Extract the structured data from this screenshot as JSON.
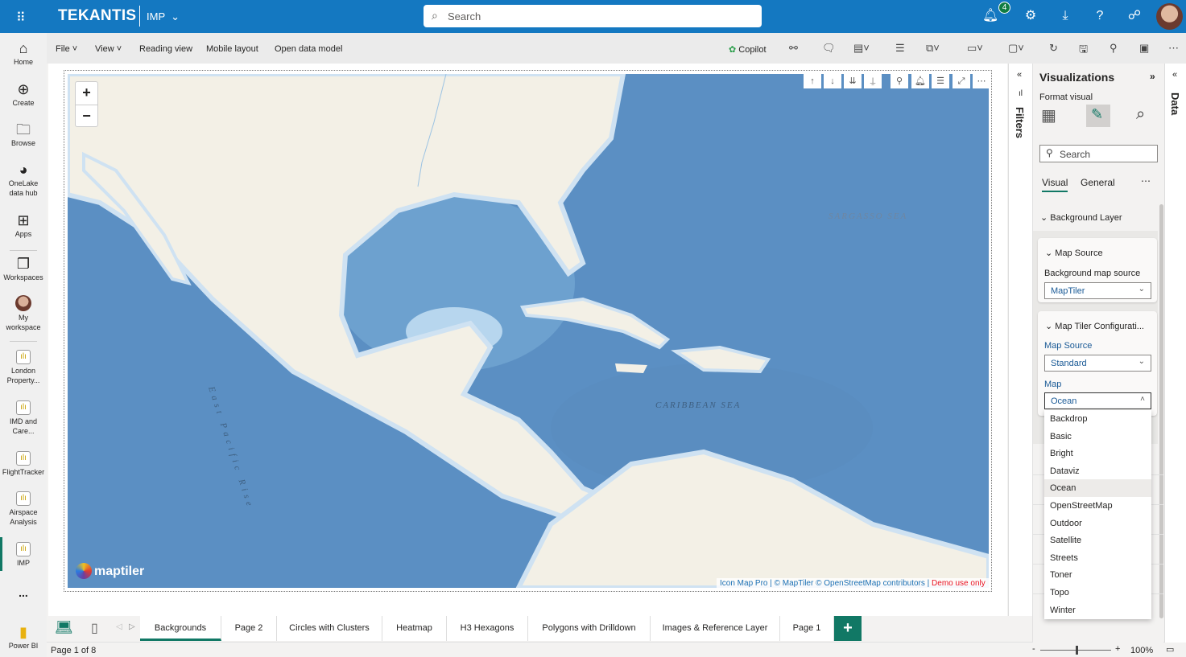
{
  "topbar": {
    "brand": "TEKANTIS",
    "workspace": "IMP",
    "search_placeholder": "Search",
    "notification_count": "4"
  },
  "leftnav": [
    {
      "label": "Home",
      "icon": "home-icon"
    },
    {
      "label": "Create",
      "icon": "plus-circle-icon"
    },
    {
      "label": "Browse",
      "icon": "folder-icon"
    },
    {
      "label": "OneLake data hub",
      "icon": "onelake-icon"
    },
    {
      "label": "Apps",
      "icon": "apps-icon"
    },
    {
      "label": "Workspaces",
      "icon": "workspaces-icon"
    },
    {
      "label": "My workspace",
      "icon": "avatar-icon"
    },
    {
      "label": "London Property...",
      "icon": "report-icon"
    },
    {
      "label": "IMD and Care...",
      "icon": "report-icon"
    },
    {
      "label": "FlightTracker",
      "icon": "report-icon"
    },
    {
      "label": "Airspace Analysis",
      "icon": "report-icon"
    },
    {
      "label": "IMP",
      "icon": "report-icon"
    },
    {
      "label": "...",
      "icon": "more-icon"
    },
    {
      "label": "Power BI",
      "icon": "powerbi-icon"
    }
  ],
  "ribbon": {
    "file": "File",
    "view": "View",
    "reading_view": "Reading view",
    "mobile_layout": "Mobile layout",
    "open_data_model": "Open data model",
    "copilot": "Copilot"
  },
  "map": {
    "labels": {
      "sargasso": "SARGASSO SEA",
      "caribbean": "CARIBBEAN SEA",
      "pacific_rise": "East Pacific Rise"
    },
    "logo": "maptiler",
    "attribution": {
      "icon_map_pro": "Icon Map Pro",
      "maptiler": "© MapTiler",
      "osm": "© OpenStreetMap contributors",
      "demo": "Demo use only"
    }
  },
  "tabs": [
    "Backgrounds",
    "Page 2",
    "Circles with Clusters",
    "Heatmap",
    "H3 Hexagons",
    "Polygons with Drilldown",
    "Images & Reference Layer",
    "Page 1"
  ],
  "status": {
    "page": "Page 1 of 8",
    "zoom": "100%"
  },
  "filters": {
    "label": "Filters"
  },
  "data_pane": {
    "label": "Data"
  },
  "viz": {
    "title": "Visualizations",
    "format_visual": "Format visual",
    "search_placeholder": "Search",
    "tab_visual": "Visual",
    "tab_general": "General",
    "background_layer": "Background Layer",
    "map_source_section": "Map Source",
    "bg_source_label": "Background map source",
    "bg_source_value": "MapTiler",
    "maptiler_section": "Map Tiler Configurati...",
    "map_source_label": "Map Source",
    "map_source_value": "Standard",
    "map_label": "Map",
    "map_value": "Ocean",
    "map_options": [
      "Backdrop",
      "Basic",
      "Bright",
      "Dataviz",
      "Ocean",
      "OpenStreetMap",
      "Outdoor",
      "Satellite",
      "Streets",
      "Toner",
      "Topo",
      "Winter"
    ]
  }
}
